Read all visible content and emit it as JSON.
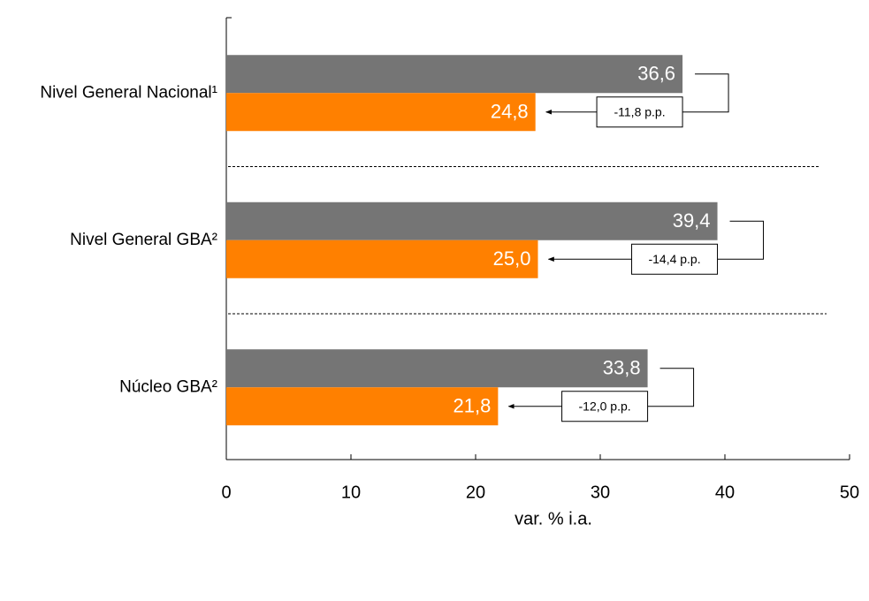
{
  "chart_data": {
    "type": "hbar",
    "categories": [
      "Nivel General Nacional¹",
      "Nivel General GBA²",
      "Núcleo GBA²"
    ],
    "series": [
      {
        "color": "#757575",
        "values": [
          36.6,
          39.4,
          33.8
        ],
        "value_labels": [
          "36,6",
          "39,4",
          "33,8"
        ]
      },
      {
        "color": "#ff8000",
        "values": [
          24.8,
          25.0,
          21.8
        ],
        "value_labels": [
          "24,8",
          "25,0",
          "21,8"
        ]
      }
    ],
    "annotations": [
      "-11,8 p.p.",
      "-14,4 p.p.",
      "-12,0 p.p."
    ],
    "xlim": [
      0,
      50
    ],
    "xticks": [
      0,
      10,
      20,
      30,
      40,
      50
    ],
    "xlabel": "var. % i.a."
  }
}
